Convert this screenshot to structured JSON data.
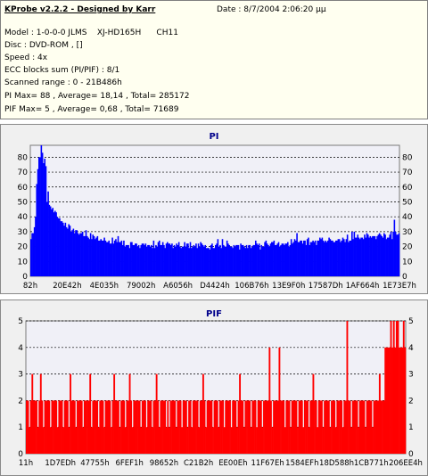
{
  "info": {
    "app_title": "KProbe v2.2.2 - Designed by Karr",
    "date": "Date : 8/7/2004 2:06:20 μμ",
    "model": "Model : 1-0-0-0 JLMS    XJ-HD165H      CH11",
    "disc": "Disc : DVD-ROM , []",
    "speed": "Speed : 4x",
    "ecc": "ECC blocks sum (PI/PIF) : 8/1",
    "range": "Scanned range : 0 - 21B486h",
    "pi_stats": "PI Max= 88 , Average= 18,14 , Total= 285172",
    "pif_stats": "PIF Max= 5 , Average= 0,68 , Total= 71689"
  },
  "chart_data": [
    {
      "type": "bar",
      "title": "PI",
      "ylim": [
        0,
        88
      ],
      "yticks": [
        "0",
        "10",
        "20",
        "30",
        "40",
        "50",
        "60",
        "70",
        "80"
      ],
      "xticks": [
        "82h",
        "20E42h",
        "4E035h",
        "79002h",
        "A6056h",
        "D4424h",
        "106B76h",
        "13E9F0h",
        "17587Dh",
        "1AF664h",
        "1E73E7h"
      ],
      "grid": true,
      "color": "#0000ff",
      "values": [
        25,
        29,
        29,
        33,
        40,
        62,
        72,
        80,
        80,
        88,
        83,
        76,
        79,
        74,
        50,
        57,
        48,
        47,
        45,
        46,
        43,
        44,
        43,
        40,
        39,
        39,
        37,
        37,
        36,
        34,
        36,
        33,
        32,
        35,
        34,
        30,
        31,
        32,
        29,
        31,
        31,
        29,
        28,
        29,
        29,
        30,
        27,
        27,
        31,
        27,
        26,
        25,
        29,
        25,
        28,
        27,
        25,
        26,
        27,
        24,
        24,
        25,
        24,
        24,
        26,
        24,
        23,
        23,
        24,
        22,
        22,
        26,
        22,
        24,
        25,
        23,
        27,
        23,
        23,
        24,
        21,
        24,
        20,
        21,
        21,
        21,
        19,
        23,
        23,
        21,
        21,
        22,
        22,
        20,
        21,
        19,
        21,
        22,
        22,
        21,
        22,
        20,
        21,
        21,
        20,
        21,
        19,
        24,
        19,
        21,
        20,
        23,
        24,
        21,
        21,
        23,
        21,
        19,
        22,
        23,
        22,
        22,
        21,
        22,
        19,
        21,
        20,
        22,
        21,
        23,
        20,
        19,
        20,
        20,
        23,
        20,
        22,
        22,
        19,
        23,
        19,
        20,
        21,
        20,
        22,
        19,
        22,
        20,
        23,
        22,
        21,
        20,
        21,
        19,
        19,
        19,
        18,
        21,
        22,
        19,
        19,
        21,
        22,
        25,
        20,
        21,
        19,
        25,
        21,
        20,
        20,
        24,
        22,
        21,
        20,
        20,
        19,
        21,
        20,
        21,
        21,
        21,
        18,
        22,
        21,
        21,
        20,
        19,
        21,
        19,
        21,
        21,
        19,
        20,
        21,
        21,
        24,
        22,
        21,
        22,
        18,
        21,
        20,
        20,
        23,
        24,
        22,
        21,
        20,
        22,
        23,
        23,
        24,
        21,
        21,
        22,
        23,
        20,
        21,
        22,
        22,
        21,
        22,
        22,
        23,
        20,
        21,
        25,
        22,
        23,
        25,
        24,
        29,
        23,
        23,
        24,
        24,
        22,
        24,
        24,
        21,
        25,
        26,
        21,
        23,
        23,
        24,
        23,
        24,
        21,
        24,
        24,
        26,
        25,
        26,
        24,
        23,
        24,
        23,
        24,
        26,
        25,
        24,
        24,
        23,
        23,
        24,
        24,
        25,
        25,
        23,
        24,
        26,
        25,
        23,
        25,
        28,
        23,
        24,
        24,
        30,
        25,
        30,
        26,
        26,
        28,
        26,
        25,
        26,
        26,
        25,
        28,
        26,
        29,
        28,
        26,
        27,
        26,
        27,
        27,
        27,
        25,
        27,
        28,
        29,
        28,
        27,
        26,
        29,
        28,
        25,
        26,
        26,
        28,
        30,
        25,
        30,
        38,
        30,
        28,
        28,
        29
      ]
    },
    {
      "type": "bar",
      "title": "PIF",
      "ylim": [
        0,
        5
      ],
      "yticks": [
        "0",
        "1",
        "2",
        "3",
        "4",
        "5"
      ],
      "xticks": [
        "11h",
        "1D7EDh",
        "47755h",
        "6FEF1h",
        "98652h",
        "C21B2h",
        "EE00Eh",
        "11F67Eh",
        "1584EFh",
        "18D588h",
        "1CB771h",
        "206EE4h"
      ],
      "grid": true,
      "color": "#ff0000",
      "values": [
        2,
        2,
        1,
        2,
        3,
        2,
        2,
        2,
        1,
        2,
        3,
        2,
        1,
        2,
        2,
        2,
        2,
        1,
        2,
        2,
        2,
        2,
        1,
        2,
        2,
        2,
        1,
        2,
        2,
        2,
        1,
        3,
        2,
        2,
        2,
        1,
        2,
        2,
        2,
        2,
        1,
        2,
        2,
        2,
        2,
        3,
        1,
        2,
        2,
        2,
        2,
        1,
        2,
        2,
        2,
        1,
        2,
        2,
        2,
        2,
        1,
        2,
        3,
        2,
        2,
        2,
        1,
        2,
        2,
        2,
        1,
        2,
        2,
        3,
        2,
        1,
        2,
        2,
        2,
        2,
        2,
        1,
        2,
        2,
        2,
        1,
        2,
        2,
        2,
        1,
        2,
        2,
        3,
        2,
        1,
        2,
        2,
        2,
        2,
        1,
        2,
        1,
        2,
        2,
        2,
        2,
        1,
        2,
        2,
        2,
        1,
        2,
        2,
        2,
        1,
        2,
        2,
        1,
        2,
        2,
        2,
        2,
        1,
        2,
        2,
        3,
        2,
        1,
        2,
        2,
        2,
        2,
        1,
        2,
        2,
        2,
        1,
        2,
        2,
        2,
        1,
        2,
        2,
        2,
        2,
        1,
        2,
        2,
        2,
        1,
        2,
        3,
        2,
        2,
        1,
        2,
        2,
        2,
        2,
        1,
        2,
        2,
        2,
        1,
        2,
        2,
        2,
        1,
        2,
        2,
        2,
        2,
        4,
        2,
        1,
        2,
        2,
        2,
        2,
        4,
        2,
        2,
        2,
        1,
        2,
        2,
        2,
        1,
        2,
        2,
        2,
        2,
        1,
        2,
        2,
        2,
        1,
        2,
        2,
        2,
        1,
        2,
        2,
        3,
        2,
        2,
        1,
        2,
        2,
        2,
        1,
        2,
        2,
        2,
        2,
        1,
        2,
        2,
        2,
        1,
        2,
        2,
        2,
        2,
        1,
        2,
        2,
        5,
        2,
        2,
        1,
        2,
        2,
        2,
        2,
        1,
        2,
        2,
        2,
        2,
        1,
        2,
        2,
        2,
        2,
        1,
        2,
        2,
        2,
        2,
        3,
        2,
        2,
        2,
        4,
        4,
        4,
        4,
        5,
        4,
        5,
        4,
        5,
        5,
        4,
        4,
        4,
        5,
        4
      ]
    }
  ]
}
